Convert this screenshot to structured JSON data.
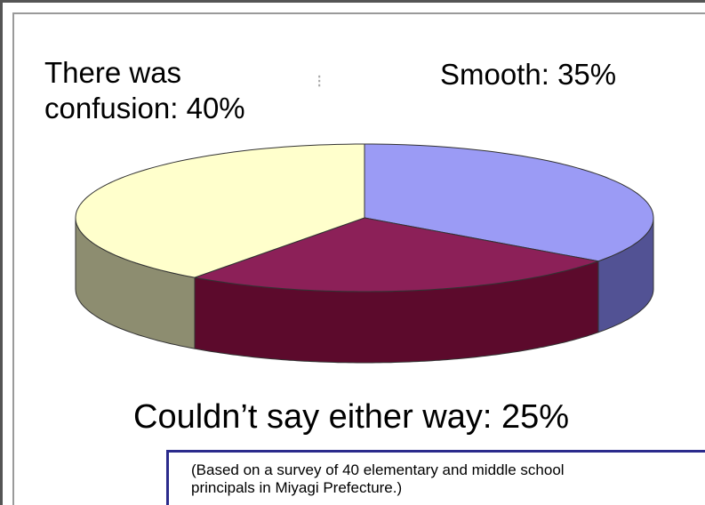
{
  "chart_data": {
    "type": "pie",
    "slices": [
      {
        "label": "Smooth: 35%",
        "value": 35,
        "color": "#9b9bf5",
        "side_color": "#525294"
      },
      {
        "label": "Couldn’t say either way: 25%",
        "value": 25,
        "color": "#8c2058",
        "side_color": "#5c0a2c"
      },
      {
        "label": "There was confusion: 40%",
        "value": 40,
        "color": "#ffffcc",
        "side_color": "#8d8d70"
      }
    ],
    "style": "3d-perspective"
  },
  "labels": {
    "confusion_line1": "There was",
    "confusion_line2": "confusion: 40%",
    "smooth": "Smooth: 35%",
    "either": "Couldn’t say either way: 25%"
  },
  "note": {
    "line1": "(Based on a survey of 40 elementary and middle school",
    "line2": "principals in Miyagi Prefecture.)"
  }
}
